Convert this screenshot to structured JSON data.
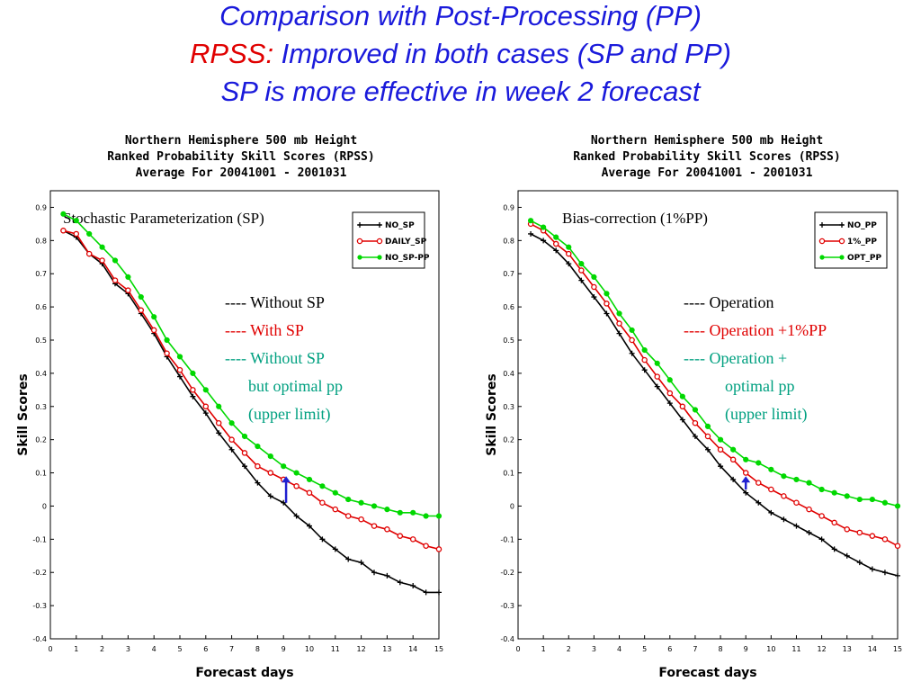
{
  "slide": {
    "title_line1": "Comparison with Post-Processing (PP)",
    "title_line2_red": "RPSS:",
    "title_line2_rest": " Improved in both cases (SP and PP)",
    "title_line3": "SP is more effective in week 2 forecast"
  },
  "colors": {
    "title_blue": "#1a1adb",
    "title_red": "#e00000",
    "black": "#000000",
    "red": "#e00000",
    "green": "#00d800",
    "teal": "#00a080",
    "arrow": "#2020d0"
  },
  "chart_data": [
    {
      "type": "line",
      "title": [
        "Northern Hemisphere 500 mb Height",
        "Ranked Probability Skill Scores (RPSS)",
        "Average For 20041001 - 2001031"
      ],
      "inset_label": "Stochastic Parameterization (SP)",
      "xlabel": "Forecast days",
      "ylabel": "Skill Scores",
      "xlim": [
        0,
        15
      ],
      "ylim": [
        -0.4,
        0.95
      ],
      "x_ticks": [
        "0",
        "1",
        "2",
        "3",
        "4",
        "5",
        "6",
        "7",
        "8",
        "9",
        "10",
        "11",
        "12",
        "13",
        "14",
        "15"
      ],
      "y_ticks": [
        "0.9",
        "0.8",
        "0.7",
        "0.6",
        "0.5",
        "0.4",
        "0.3",
        "0.2",
        "0.1",
        "0",
        "-0.1",
        "-0.2",
        "-0.3",
        "-0.4"
      ],
      "legend_position": "top-right",
      "x": [
        0.5,
        1,
        1.5,
        2,
        2.5,
        3,
        3.5,
        4,
        4.5,
        5,
        5.5,
        6,
        6.5,
        7,
        7.5,
        8,
        8.5,
        9,
        9.5,
        10,
        10.5,
        11,
        11.5,
        12,
        12.5,
        13,
        13.5,
        14,
        14.5,
        15
      ],
      "series": [
        {
          "name": "NO_SP",
          "color": "#000000",
          "marker": "cross",
          "values": [
            0.83,
            0.81,
            0.76,
            0.73,
            0.67,
            0.64,
            0.58,
            0.52,
            0.45,
            0.39,
            0.33,
            0.28,
            0.22,
            0.17,
            0.12,
            0.07,
            0.03,
            0.01,
            -0.03,
            -0.06,
            -0.1,
            -0.13,
            -0.16,
            -0.17,
            -0.2,
            -0.21,
            -0.23,
            -0.24,
            -0.26,
            -0.26
          ]
        },
        {
          "name": "DAILY_SP",
          "color": "#e00000",
          "marker": "circle",
          "values": [
            0.83,
            0.82,
            0.76,
            0.74,
            0.68,
            0.65,
            0.59,
            0.53,
            0.46,
            0.41,
            0.35,
            0.3,
            0.25,
            0.2,
            0.16,
            0.12,
            0.1,
            0.08,
            0.06,
            0.04,
            0.01,
            -0.01,
            -0.03,
            -0.04,
            -0.06,
            -0.07,
            -0.09,
            -0.1,
            -0.12,
            -0.13
          ]
        },
        {
          "name": "NO_SP-PP",
          "color": "#00d800",
          "marker": "dot",
          "values": [
            0.88,
            0.86,
            0.82,
            0.78,
            0.74,
            0.69,
            0.63,
            0.57,
            0.5,
            0.45,
            0.4,
            0.35,
            0.3,
            0.25,
            0.21,
            0.18,
            0.15,
            0.12,
            0.1,
            0.08,
            0.06,
            0.04,
            0.02,
            0.01,
            0.0,
            -0.01,
            -0.02,
            -0.02,
            -0.03,
            -0.03
          ]
        }
      ],
      "annotations": [
        {
          "text": "---- Without SP",
          "color": "#000000"
        },
        {
          "text": "---- With SP",
          "color": "#e00000"
        },
        {
          "text": "---- Without SP",
          "color": "#00a080"
        },
        {
          "text": "but optimal pp",
          "color": "#00a080"
        },
        {
          "text": "(upper limit)",
          "color": "#00a080"
        }
      ],
      "arrow": {
        "x": 9.1,
        "from": 0.01,
        "to": 0.09
      }
    },
    {
      "type": "line",
      "title": [
        "Northern Hemisphere 500 mb Height",
        "Ranked Probability Skill Scores (RPSS)",
        "Average For 20041001 - 2001031"
      ],
      "inset_label": "Bias-correction (1%PP)",
      "xlabel": "Forecast days",
      "ylabel": "Skill Scores",
      "xlim": [
        0,
        15
      ],
      "ylim": [
        -0.4,
        0.95
      ],
      "x_ticks": [
        "0",
        "1",
        "2",
        "3",
        "4",
        "5",
        "6",
        "7",
        "8",
        "9",
        "10",
        "11",
        "12",
        "13",
        "14",
        "15"
      ],
      "y_ticks": [
        "0.9",
        "0.8",
        "0.7",
        "0.6",
        "0.5",
        "0.4",
        "0.3",
        "0.2",
        "0.1",
        "0",
        "-0.1",
        "-0.2",
        "-0.3",
        "-0.4"
      ],
      "legend_position": "top-right",
      "x": [
        0.5,
        1,
        1.5,
        2,
        2.5,
        3,
        3.5,
        4,
        4.5,
        5,
        5.5,
        6,
        6.5,
        7,
        7.5,
        8,
        8.5,
        9,
        9.5,
        10,
        10.5,
        11,
        11.5,
        12,
        12.5,
        13,
        13.5,
        14,
        14.5,
        15
      ],
      "series": [
        {
          "name": "NO_PP",
          "color": "#000000",
          "marker": "cross",
          "values": [
            0.82,
            0.8,
            0.77,
            0.73,
            0.68,
            0.63,
            0.58,
            0.52,
            0.46,
            0.41,
            0.36,
            0.31,
            0.26,
            0.21,
            0.17,
            0.12,
            0.08,
            0.04,
            0.01,
            -0.02,
            -0.04,
            -0.06,
            -0.08,
            -0.1,
            -0.13,
            -0.15,
            -0.17,
            -0.19,
            -0.2,
            -0.21
          ]
        },
        {
          "name": "1%_PP",
          "color": "#e00000",
          "marker": "circle",
          "values": [
            0.85,
            0.83,
            0.79,
            0.76,
            0.71,
            0.66,
            0.61,
            0.55,
            0.5,
            0.44,
            0.39,
            0.34,
            0.3,
            0.25,
            0.21,
            0.17,
            0.14,
            0.1,
            0.07,
            0.05,
            0.03,
            0.01,
            -0.01,
            -0.03,
            -0.05,
            -0.07,
            -0.08,
            -0.09,
            -0.1,
            -0.12
          ]
        },
        {
          "name": "OPT_PP",
          "color": "#00d800",
          "marker": "dot",
          "values": [
            0.86,
            0.84,
            0.81,
            0.78,
            0.73,
            0.69,
            0.64,
            0.58,
            0.53,
            0.47,
            0.43,
            0.38,
            0.33,
            0.29,
            0.24,
            0.2,
            0.17,
            0.14,
            0.13,
            0.11,
            0.09,
            0.08,
            0.07,
            0.05,
            0.04,
            0.03,
            0.02,
            0.02,
            0.01,
            0.0
          ]
        }
      ],
      "annotations": [
        {
          "text": "---- Operation",
          "color": "#000000"
        },
        {
          "text": "---- Operation +1%PP",
          "color": "#e00000"
        },
        {
          "text": "---- Operation +",
          "color": "#00a080"
        },
        {
          "text": "optimal pp",
          "color": "#00a080"
        },
        {
          "text": "(upper limit)",
          "color": "#00a080"
        }
      ],
      "arrow": {
        "x": 9.0,
        "from": 0.05,
        "to": 0.09
      }
    }
  ]
}
